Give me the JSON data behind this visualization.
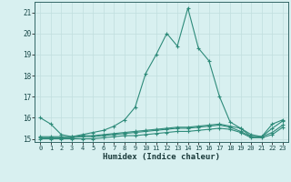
{
  "xlabel": "Humidex (Indice chaleur)",
  "x": [
    0,
    1,
    2,
    3,
    4,
    5,
    6,
    7,
    8,
    9,
    10,
    11,
    12,
    13,
    14,
    15,
    16,
    17,
    18,
    19,
    20,
    21,
    22,
    23
  ],
  "line1": [
    16.0,
    15.7,
    15.2,
    15.1,
    15.2,
    15.3,
    15.4,
    15.6,
    15.9,
    16.5,
    18.1,
    19.0,
    20.0,
    19.4,
    21.2,
    19.3,
    18.7,
    17.0,
    15.8,
    15.5,
    15.1,
    15.1,
    15.7,
    15.9
  ],
  "line2": [
    15.1,
    15.1,
    15.1,
    15.1,
    15.15,
    15.15,
    15.2,
    15.25,
    15.3,
    15.35,
    15.4,
    15.45,
    15.5,
    15.55,
    15.55,
    15.6,
    15.65,
    15.7,
    15.6,
    15.5,
    15.2,
    15.1,
    15.5,
    15.85
  ],
  "line3": [
    15.05,
    15.05,
    15.05,
    15.05,
    15.1,
    15.1,
    15.15,
    15.2,
    15.25,
    15.3,
    15.35,
    15.4,
    15.45,
    15.5,
    15.5,
    15.55,
    15.6,
    15.65,
    15.55,
    15.35,
    15.1,
    15.1,
    15.3,
    15.65
  ],
  "line4": [
    15.0,
    15.0,
    15.0,
    15.0,
    15.0,
    15.0,
    15.05,
    15.1,
    15.15,
    15.15,
    15.2,
    15.25,
    15.3,
    15.35,
    15.35,
    15.4,
    15.45,
    15.5,
    15.45,
    15.3,
    15.05,
    15.05,
    15.2,
    15.55
  ],
  "line_color": "#2E8B7A",
  "bg_color": "#d8f0f0",
  "grid_color": "#c0dede",
  "ylim": [
    14.85,
    21.5
  ],
  "yticks": [
    15,
    16,
    17,
    18,
    19,
    20,
    21
  ],
  "xticks": [
    0,
    1,
    2,
    3,
    4,
    5,
    6,
    7,
    8,
    9,
    10,
    11,
    12,
    13,
    14,
    15,
    16,
    17,
    18,
    19,
    20,
    21,
    22,
    23
  ]
}
